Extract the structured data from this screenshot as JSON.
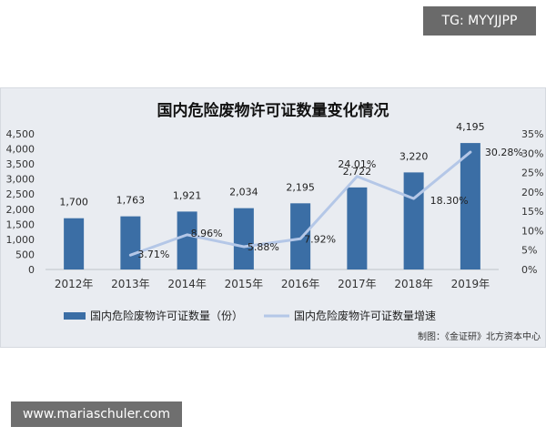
{
  "watermarks": {
    "top": "TG: MYYJJPP",
    "bottom": "www.mariaschuler.com"
  },
  "credit": "制图：《金证研》北方资本中心",
  "colors": {
    "bar": "#3b6ea5",
    "line": "#b4c7e7",
    "panel_bg": "#e9ecf1"
  },
  "chart_data": {
    "type": "bar",
    "title": "国内危险废物许可证数量变化情况",
    "categories": [
      "2012年",
      "2013年",
      "2014年",
      "2015年",
      "2016年",
      "2017年",
      "2018年",
      "2019年"
    ],
    "series": [
      {
        "name": "国内危险废物许可证数量（份）",
        "type": "bar",
        "axis": "left",
        "values": [
          1700,
          1763,
          1921,
          2034,
          2195,
          2722,
          3220,
          4195
        ],
        "labels": [
          "1,700",
          "1,763",
          "1,921",
          "2,034",
          "2,195",
          "2,722",
          "3,220",
          "4,195"
        ]
      },
      {
        "name": "国内危险废物许可证数量增速",
        "type": "line",
        "axis": "right",
        "values": [
          null,
          3.71,
          8.96,
          5.88,
          7.92,
          24.01,
          18.3,
          30.28
        ],
        "labels": [
          "",
          "3.71%",
          "8.96%",
          "5.88%",
          "7.92%",
          "24.01%",
          "18.30%",
          "30.28%"
        ]
      }
    ],
    "y_left": {
      "ylim": [
        0,
        4500
      ],
      "ticks": [
        0,
        500,
        1000,
        1500,
        2000,
        2500,
        3000,
        3500,
        4000,
        4500
      ],
      "tick_labels": [
        "0",
        "500",
        "1,000",
        "1,500",
        "2,000",
        "2,500",
        "3,000",
        "3,500",
        "4,000",
        "4,500"
      ]
    },
    "y_right": {
      "ylim": [
        0,
        35
      ],
      "ticks": [
        0,
        5,
        10,
        15,
        20,
        25,
        30,
        35
      ],
      "tick_labels": [
        "0%",
        "5%",
        "10%",
        "15%",
        "20%",
        "25%",
        "30%",
        "35%"
      ]
    },
    "grid": false,
    "legend": "bottom"
  }
}
